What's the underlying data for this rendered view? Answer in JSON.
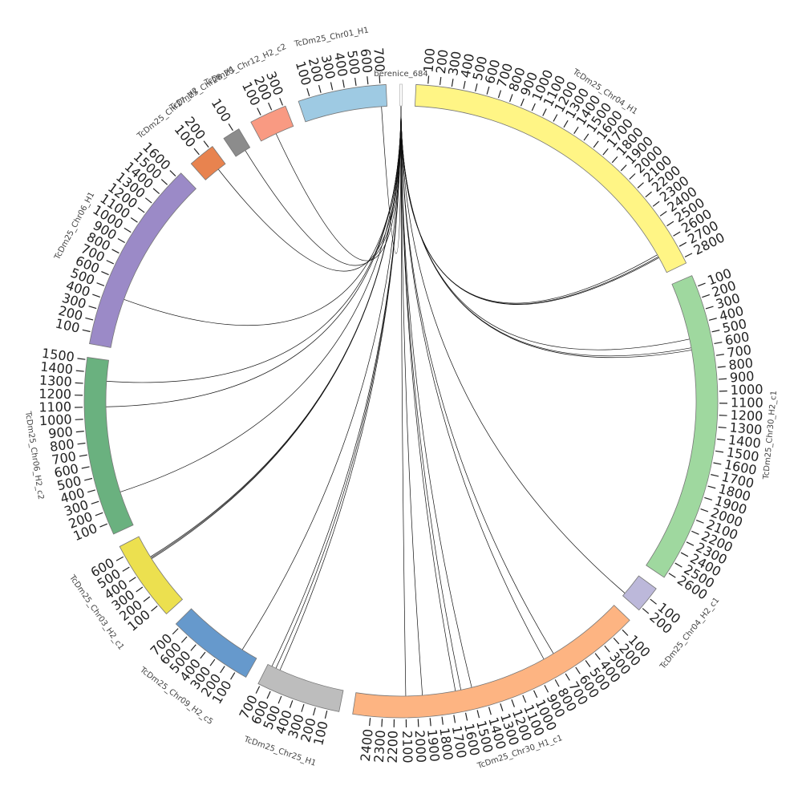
{
  "chart_data": {
    "type": "chord",
    "segments": [
      {
        "name": "berenice_684",
        "length": 20,
        "color": "#ffffff",
        "ticks": [],
        "links": []
      },
      {
        "name": "TcDm25_Chr04_H1",
        "length": 2850,
        "color": "#fff585",
        "ticks": [
          100,
          200,
          300,
          400,
          500,
          600,
          700,
          800,
          900,
          1000,
          1100,
          1200,
          1300,
          1400,
          1500,
          1600,
          1700,
          1800,
          1900,
          2000,
          2100,
          2200,
          2300,
          2400,
          2500,
          2600,
          2700,
          2800
        ],
        "links": [
          2670,
          2690,
          2700
        ]
      },
      {
        "name": "TcDm25_Chr30_H2_c1",
        "length": 2650,
        "color": "#9fd89f",
        "ticks": [
          100,
          200,
          300,
          400,
          500,
          600,
          700,
          800,
          900,
          1000,
          1100,
          1200,
          1300,
          1400,
          1500,
          1600,
          1700,
          1800,
          1900,
          2000,
          2100,
          2200,
          2300,
          2400,
          2500,
          2600
        ],
        "links": [
          520,
          600,
          620
        ]
      },
      {
        "name": "TcDm25_Chr04_H2_c1",
        "length": 230,
        "color": "#bcb8da",
        "ticks": [
          100,
          200
        ],
        "links": [
          200
        ]
      },
      {
        "name": "TcDm25_Chr30_H1_c1",
        "length": 2550,
        "color": "#fdb482",
        "ticks": [
          100,
          200,
          300,
          400,
          500,
          600,
          700,
          800,
          900,
          1000,
          1100,
          1200,
          1300,
          1400,
          1500,
          1600,
          1700,
          1800,
          1900,
          2000,
          2100,
          2200,
          2300,
          2400
        ],
        "links": [
          700,
          800,
          1500,
          1600,
          1650,
          1950,
          2100
        ]
      },
      {
        "name": "TcDm25_Chr25_H1",
        "length": 720,
        "color": "#bdbdbd",
        "ticks": [
          100,
          200,
          300,
          400,
          500,
          600,
          700
        ],
        "links": [
          600,
          640,
          680
        ]
      },
      {
        "name": "TcDm25_Chr09_H2_c5",
        "length": 740,
        "color": "#6699cc",
        "ticks": [
          100,
          200,
          300,
          400,
          500,
          600,
          700
        ],
        "links": [
          150
        ]
      },
      {
        "name": "TcDm25_Chr03_H2_c1",
        "length": 690,
        "color": "#ece04f",
        "ticks": [
          100,
          200,
          300,
          400,
          500,
          600
        ],
        "links": [
          460,
          470,
          480
        ]
      },
      {
        "name": "TcDm25_Chr06_H2_c2",
        "length": 1520,
        "color": "#6ab17f",
        "ticks": [
          100,
          200,
          300,
          400,
          500,
          600,
          700,
          800,
          900,
          1000,
          1100,
          1200,
          1300,
          1400,
          1500
        ],
        "links": [
          320,
          1100,
          1330
        ]
      },
      {
        "name": "TcDm25_Chr06_H1",
        "length": 1650,
        "color": "#9b8ac7",
        "ticks": [
          100,
          200,
          300,
          400,
          500,
          600,
          700,
          800,
          900,
          1000,
          1100,
          1200,
          1300,
          1400,
          1500,
          1600
        ],
        "links": [
          450
        ]
      },
      {
        "name": "TcDm25_Chr27_H2",
        "length": 230,
        "color": "#e8834f",
        "ticks": [
          100,
          200
        ],
        "links": [
          150
        ]
      },
      {
        "name": "TcDm25_Chr28_H1",
        "length": 150,
        "color": "#8c8c8c",
        "ticks": [
          100
        ],
        "links": [
          100
        ]
      },
      {
        "name": "TcDm25_Chr12_H2_c2",
        "length": 320,
        "color": "#f99a82",
        "ticks": [
          100,
          200,
          300
        ],
        "links": [
          150
        ]
      },
      {
        "name": "TcDm25_Chr01_H1",
        "length": 750,
        "color": "#9ecae3",
        "ticks": [
          100,
          200,
          300,
          400,
          500,
          600,
          700
        ],
        "links": [
          700
        ]
      }
    ]
  }
}
